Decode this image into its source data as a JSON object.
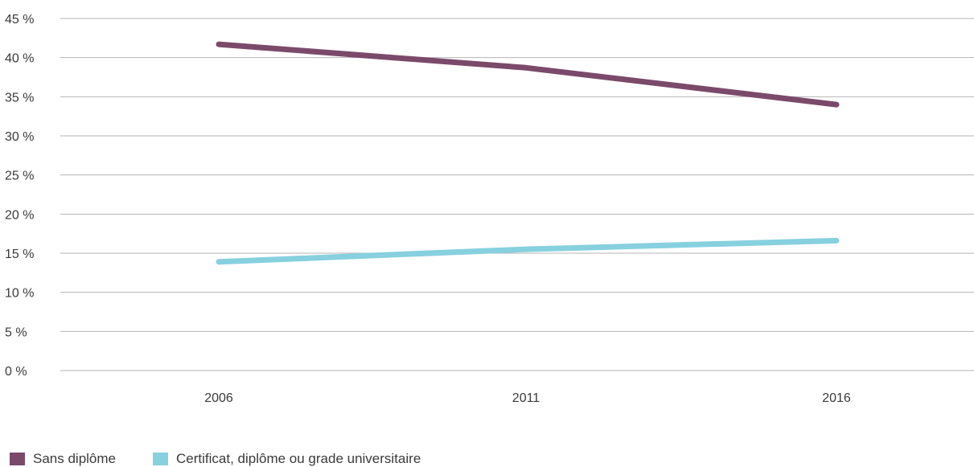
{
  "chart_data": {
    "type": "line",
    "title": "",
    "xlabel": "",
    "ylabel": "",
    "x": [
      "2006",
      "2011",
      "2016"
    ],
    "ylim": [
      0,
      45
    ],
    "yticks": [
      0,
      5,
      10,
      15,
      20,
      25,
      30,
      35,
      40,
      45
    ],
    "ytick_labels": [
      "0 %",
      "5 %",
      "10 %",
      "15 %",
      "20 %",
      "25 %",
      "30 %",
      "35 %",
      "40 %",
      "45 %"
    ],
    "grid": true,
    "legend_position": "bottom-left",
    "series": [
      {
        "name": "Sans diplôme",
        "color": "#7b4a6b",
        "values": [
          41.7,
          38.7,
          34.0
        ]
      },
      {
        "name": "Certificat, diplôme ou grade universitaire",
        "color": "#86d0df",
        "values": [
          13.9,
          15.5,
          16.6
        ]
      }
    ]
  }
}
